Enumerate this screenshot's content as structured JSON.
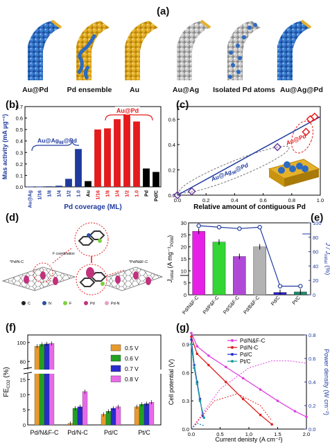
{
  "panel_a": {
    "label": "(a)",
    "captions": [
      "Au@Pd",
      "Pd ensemble",
      "Au",
      "Au@Ag",
      "Isolated Pd atoms",
      "Au@Ag@Pd"
    ]
  },
  "panel_b": {
    "label": "(b)",
    "ylabel": "Mas activity (mA µg⁻¹)",
    "xlabel": "Pd coverage (ML)",
    "group_labels": [
      "Au@Ag",
      "@Pd",
      "Au@Pd"
    ],
    "group_label_sub": "98"
  },
  "panel_c": {
    "label": "(c)",
    "xlabel": "Relative amount of contiguous Pd",
    "annotations": [
      "Au@Ag",
      "@Pd",
      "Au@Pd"
    ],
    "annotation_sub": "98"
  },
  "panel_d": {
    "label": "(d)",
    "scheme_text": [
      "*Pd/N-C",
      "F coordination",
      "*Pd/N&F-C"
    ],
    "legend": [
      "C",
      "N",
      "F",
      "Pd",
      "Pd-N"
    ]
  },
  "panel_e": {
    "label": "(e)",
    "ylabel_left": "J",
    "ylabel_left_sub": "initial",
    "ylabel_left_units": "(A mg⁻¹",
    "ylabel_left_units_sub": "PGM",
    "ylabel_right": "J / J",
    "ylabel_right_sub": "initial",
    "ylabel_right_units": "(%)"
  },
  "panel_f": {
    "label": "(f)",
    "ylabel": "FE",
    "ylabel_sub": "CO2",
    "ylabel_units": "(%)"
  },
  "panel_g": {
    "label": "(g)",
    "ylabel_left": "Cell potential (V)",
    "ylabel_right": "Power density (W cm⁻²)",
    "xlabel": "Current denisty (A cm⁻²)"
  },
  "chart_data": [
    {
      "id": "b",
      "type": "bar",
      "categories": [
        "Au@Ag",
        "1/16",
        "1/8",
        "1/4",
        "1/2",
        "1.0",
        "Au",
        "1/16",
        "1/8",
        "1/4",
        "1/2",
        "1.0",
        "Pd",
        "Pd/C"
      ],
      "values": [
        0.003,
        0.003,
        0.005,
        0.01,
        0.07,
        0.33,
        0.05,
        0.5,
        0.51,
        0.59,
        0.63,
        0.57,
        0.16,
        0.13
      ],
      "colors": [
        "#1f3a9e",
        "#1f3a9e",
        "#1f3a9e",
        "#1f3a9e",
        "#1f3a9e",
        "#1f3a9e",
        "#000000",
        "#e41a1c",
        "#e41a1c",
        "#e41a1c",
        "#e41a1c",
        "#e41a1c",
        "#000000",
        "#000000"
      ],
      "ylim": [
        0,
        0.7
      ],
      "yticks": [
        "0.0",
        "0.1",
        "0.2",
        "0.3",
        "0.4",
        "0.5",
        "0.6",
        "0.7"
      ]
    },
    {
      "id": "c",
      "type": "scatter",
      "x": [
        0.0,
        0.1,
        0.7,
        0.9,
        0.93,
        0.96
      ],
      "y": [
        0.0,
        0.03,
        0.38,
        0.5,
        0.6,
        0.62
      ],
      "fit_line": {
        "x": [
          0.0,
          1.0
        ],
        "y": [
          0.0,
          0.62
        ]
      },
      "xlim": [
        0,
        1.0
      ],
      "ylim": [
        0,
        0.7
      ],
      "xticks": [
        "0.0",
        "0.2",
        "0.4",
        "0.6",
        "0.8",
        "1.0"
      ],
      "yticks": [
        "0.0",
        "0.2",
        "0.4",
        "0.6"
      ]
    },
    {
      "id": "e",
      "type": "bar",
      "categories": [
        "Pd/N&F-C",
        "Pd/P&F-C",
        "Pd/S&F-C",
        "Pd/B&F-C",
        "Pd/C",
        "Pt/C"
      ],
      "values": [
        26.5,
        22,
        16,
        20,
        1,
        1.2
      ],
      "colors": [
        "#e620e6",
        "#33d633",
        "#b04ad6",
        "#b3b3b3",
        "#2a1ec8",
        "#1a8a6a"
      ],
      "ylim": [
        0,
        30
      ],
      "yticks": [
        "0",
        "5",
        "10",
        "15",
        "20",
        "25",
        "30"
      ],
      "series_right": {
        "values": [
          96,
          94,
          92,
          94,
          12,
          12
        ],
        "ylim": [
          0,
          100
        ],
        "yticks": [
          "0",
          "20",
          "40",
          "60",
          "80",
          "100"
        ]
      }
    },
    {
      "id": "f",
      "type": "bar",
      "categories": [
        "Pd/N&F-C",
        "Pd/N-C",
        "Pd/C",
        "Pt/C"
      ],
      "series": [
        {
          "name": "0.5 V",
          "values": [
            96,
            0.5,
            3.5,
            6
          ],
          "color": "#e89a2c"
        },
        {
          "name": "0.6 V",
          "values": [
            98,
            5.5,
            4.5,
            6.8
          ],
          "color": "#22a022"
        },
        {
          "name": "0.7 V",
          "values": [
            98.5,
            6,
            5.5,
            7
          ],
          "color": "#2a2ad0"
        },
        {
          "name": "0.8 V",
          "values": [
            99,
            11,
            6,
            7.5
          ],
          "color": "#e86ae8"
        }
      ],
      "yticks_low": [
        "0",
        "5",
        "10",
        "15"
      ],
      "yticks_high": [
        "80",
        "100"
      ]
    },
    {
      "id": "g",
      "type": "line",
      "series": [
        {
          "name": "Pd/N&F-C",
          "color": "#e040e0",
          "x": [
            0,
            0.1,
            0.3,
            0.6,
            0.9,
            1.2,
            1.5,
            1.8,
            2.0
          ],
          "y": [
            1.02,
            0.88,
            0.78,
            0.66,
            0.54,
            0.42,
            0.3,
            0.19,
            0.13
          ]
        },
        {
          "name": "Pd/N-C",
          "color": "#e02020",
          "x": [
            0,
            0.1,
            0.3,
            0.6,
            0.9,
            1.2,
            1.4
          ],
          "y": [
            0.98,
            0.8,
            0.68,
            0.5,
            0.32,
            0.15,
            0.05
          ]
        },
        {
          "name": "Pd/C",
          "color": "#2030d0",
          "x": [
            0,
            0.05,
            0.1,
            0.15,
            0.2
          ],
          "y": [
            0.95,
            0.68,
            0.5,
            0.32,
            0.14
          ]
        },
        {
          "name": "Pt/C",
          "color": "#20a0a0",
          "x": [
            0,
            0.05,
            0.1,
            0.15,
            0.22
          ],
          "y": [
            0.9,
            0.65,
            0.48,
            0.3,
            0.12
          ]
        }
      ],
      "power_series": [
        {
          "name": "Pd/N&F-C",
          "color": "#e040e0",
          "x": [
            0,
            0.5,
            1.0,
            1.4,
            1.7,
            2.0
          ],
          "y": [
            0,
            0.34,
            0.52,
            0.58,
            0.58,
            0.56
          ]
        },
        {
          "name": "Pd/N-C",
          "color": "#e02020",
          "x": [
            0,
            0.4,
            0.8,
            1.2,
            1.4
          ],
          "y": [
            0,
            0.24,
            0.3,
            0.2,
            0.07
          ]
        },
        {
          "name": "Pd/C",
          "color": "#2030d0",
          "x": [
            0,
            0.1,
            0.2
          ],
          "y": [
            0,
            0.05,
            0.03
          ]
        },
        {
          "name": "Pt/C",
          "color": "#20a0a0",
          "x": [
            0,
            0.1,
            0.22
          ],
          "y": [
            0,
            0.05,
            0.03
          ]
        }
      ],
      "xlim": [
        0,
        2.0
      ],
      "ylim": [
        0,
        1.0
      ],
      "ylim_right": [
        0,
        0.8
      ],
      "xticks": [
        "0.0",
        "0.5",
        "1.0",
        "1.5",
        "2.0"
      ],
      "yticks": [
        "0.0",
        "0.3",
        "0.6",
        "0.9"
      ],
      "yticks_right": [
        "0.0",
        "0.2",
        "0.4",
        "0.6",
        "0.8"
      ]
    }
  ]
}
